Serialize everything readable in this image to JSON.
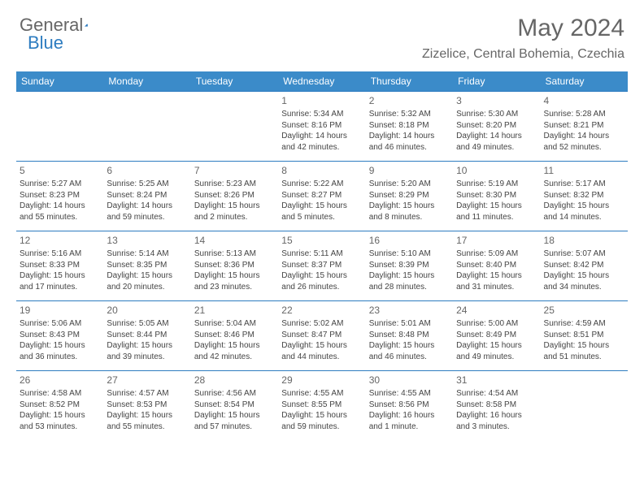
{
  "brand": {
    "part1": "General",
    "part2": "Blue"
  },
  "title": "May 2024",
  "location": "Zizelice, Central Bohemia, Czechia",
  "colors": {
    "header_bg": "#3b8bc9",
    "border": "#2d7cc0",
    "text": "#444",
    "muted": "#666"
  },
  "weekdays": [
    "Sunday",
    "Monday",
    "Tuesday",
    "Wednesday",
    "Thursday",
    "Friday",
    "Saturday"
  ],
  "first_weekday": 3,
  "days": [
    {
      "n": 1,
      "sr": "5:34 AM",
      "ss": "8:16 PM",
      "dl": "14 hours and 42 minutes."
    },
    {
      "n": 2,
      "sr": "5:32 AM",
      "ss": "8:18 PM",
      "dl": "14 hours and 46 minutes."
    },
    {
      "n": 3,
      "sr": "5:30 AM",
      "ss": "8:20 PM",
      "dl": "14 hours and 49 minutes."
    },
    {
      "n": 4,
      "sr": "5:28 AM",
      "ss": "8:21 PM",
      "dl": "14 hours and 52 minutes."
    },
    {
      "n": 5,
      "sr": "5:27 AM",
      "ss": "8:23 PM",
      "dl": "14 hours and 55 minutes."
    },
    {
      "n": 6,
      "sr": "5:25 AM",
      "ss": "8:24 PM",
      "dl": "14 hours and 59 minutes."
    },
    {
      "n": 7,
      "sr": "5:23 AM",
      "ss": "8:26 PM",
      "dl": "15 hours and 2 minutes."
    },
    {
      "n": 8,
      "sr": "5:22 AM",
      "ss": "8:27 PM",
      "dl": "15 hours and 5 minutes."
    },
    {
      "n": 9,
      "sr": "5:20 AM",
      "ss": "8:29 PM",
      "dl": "15 hours and 8 minutes."
    },
    {
      "n": 10,
      "sr": "5:19 AM",
      "ss": "8:30 PM",
      "dl": "15 hours and 11 minutes."
    },
    {
      "n": 11,
      "sr": "5:17 AM",
      "ss": "8:32 PM",
      "dl": "15 hours and 14 minutes."
    },
    {
      "n": 12,
      "sr": "5:16 AM",
      "ss": "8:33 PM",
      "dl": "15 hours and 17 minutes."
    },
    {
      "n": 13,
      "sr": "5:14 AM",
      "ss": "8:35 PM",
      "dl": "15 hours and 20 minutes."
    },
    {
      "n": 14,
      "sr": "5:13 AM",
      "ss": "8:36 PM",
      "dl": "15 hours and 23 minutes."
    },
    {
      "n": 15,
      "sr": "5:11 AM",
      "ss": "8:37 PM",
      "dl": "15 hours and 26 minutes."
    },
    {
      "n": 16,
      "sr": "5:10 AM",
      "ss": "8:39 PM",
      "dl": "15 hours and 28 minutes."
    },
    {
      "n": 17,
      "sr": "5:09 AM",
      "ss": "8:40 PM",
      "dl": "15 hours and 31 minutes."
    },
    {
      "n": 18,
      "sr": "5:07 AM",
      "ss": "8:42 PM",
      "dl": "15 hours and 34 minutes."
    },
    {
      "n": 19,
      "sr": "5:06 AM",
      "ss": "8:43 PM",
      "dl": "15 hours and 36 minutes."
    },
    {
      "n": 20,
      "sr": "5:05 AM",
      "ss": "8:44 PM",
      "dl": "15 hours and 39 minutes."
    },
    {
      "n": 21,
      "sr": "5:04 AM",
      "ss": "8:46 PM",
      "dl": "15 hours and 42 minutes."
    },
    {
      "n": 22,
      "sr": "5:02 AM",
      "ss": "8:47 PM",
      "dl": "15 hours and 44 minutes."
    },
    {
      "n": 23,
      "sr": "5:01 AM",
      "ss": "8:48 PM",
      "dl": "15 hours and 46 minutes."
    },
    {
      "n": 24,
      "sr": "5:00 AM",
      "ss": "8:49 PM",
      "dl": "15 hours and 49 minutes."
    },
    {
      "n": 25,
      "sr": "4:59 AM",
      "ss": "8:51 PM",
      "dl": "15 hours and 51 minutes."
    },
    {
      "n": 26,
      "sr": "4:58 AM",
      "ss": "8:52 PM",
      "dl": "15 hours and 53 minutes."
    },
    {
      "n": 27,
      "sr": "4:57 AM",
      "ss": "8:53 PM",
      "dl": "15 hours and 55 minutes."
    },
    {
      "n": 28,
      "sr": "4:56 AM",
      "ss": "8:54 PM",
      "dl": "15 hours and 57 minutes."
    },
    {
      "n": 29,
      "sr": "4:55 AM",
      "ss": "8:55 PM",
      "dl": "15 hours and 59 minutes."
    },
    {
      "n": 30,
      "sr": "4:55 AM",
      "ss": "8:56 PM",
      "dl": "16 hours and 1 minute."
    },
    {
      "n": 31,
      "sr": "4:54 AM",
      "ss": "8:58 PM",
      "dl": "16 hours and 3 minutes."
    }
  ],
  "labels": {
    "sunrise": "Sunrise:",
    "sunset": "Sunset:",
    "daylight": "Daylight:"
  }
}
